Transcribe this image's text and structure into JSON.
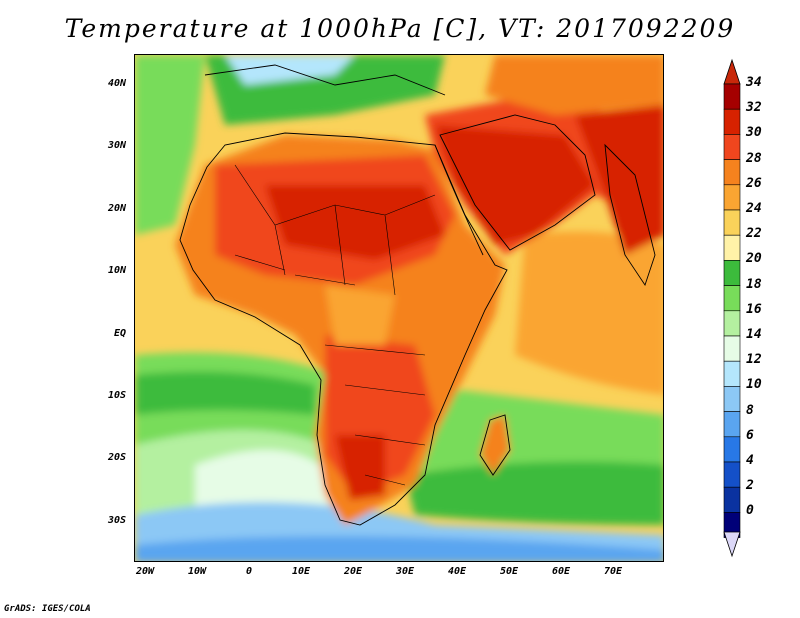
{
  "title": "Temperature at 1000hPa [C], VT: 2017092209",
  "credit": "GrADS: IGES/COLA",
  "map": {
    "lat_labels": [
      "40N",
      "30N",
      "20N",
      "10N",
      "EQ",
      "10S",
      "20S",
      "30S"
    ],
    "lon_labels": [
      "20W",
      "10W",
      "0",
      "10E",
      "20E",
      "30E",
      "40E",
      "50E",
      "60E",
      "70E"
    ],
    "region": "Africa, Middle East and Indian Ocean",
    "lon_range": [
      -23,
      80
    ],
    "lat_range": [
      -37,
      45
    ]
  },
  "colorbar": {
    "labels": [
      "34",
      "32",
      "30",
      "28",
      "26",
      "24",
      "22",
      "20",
      "18",
      "16",
      "14",
      "12",
      "10",
      "8",
      "6",
      "4",
      "2",
      "0"
    ],
    "colors": [
      "#a50000",
      "#d72200",
      "#f0461e",
      "#f5821e",
      "#faa532",
      "#fad25a",
      "#fff2a8",
      "#3cbb3c",
      "#78dc5a",
      "#b4f0a0",
      "#e6fce6",
      "#b4e6fc",
      "#8cc8f5",
      "#5aa5f0",
      "#2878e6",
      "#1450c8",
      "#0a32a0",
      "#000078",
      "#d8d0f8"
    ],
    "triangle_top": "#c8280a",
    "triangle_bottom": "#dcd8f8"
  }
}
